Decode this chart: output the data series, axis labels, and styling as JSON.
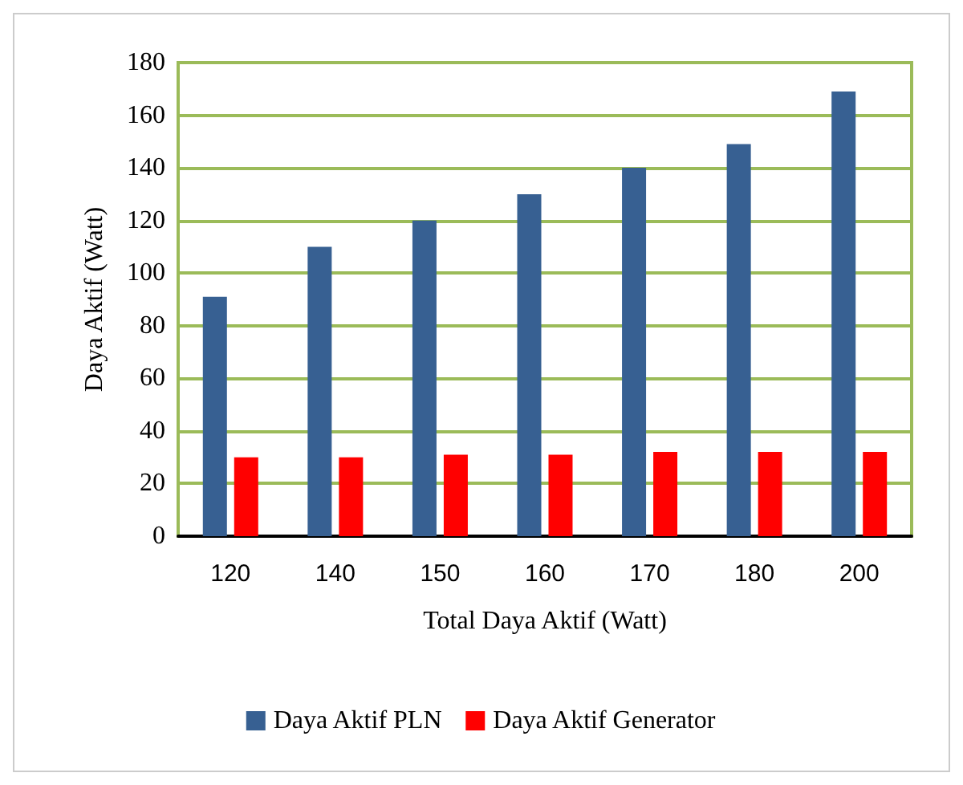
{
  "chart_data": {
    "type": "bar",
    "xlabel": "Total Daya Aktif (Watt)",
    "ylabel": "Daya Aktif (Watt)",
    "categories": [
      "120",
      "140",
      "150",
      "160",
      "170",
      "180",
      "200"
    ],
    "series": [
      {
        "name": "Daya Aktif PLN",
        "color": "#376092",
        "values": [
          91,
          110,
          120,
          130,
          140,
          149,
          169
        ]
      },
      {
        "name": "Daya Aktif Generator",
        "color": "#ff0000",
        "values": [
          30,
          30,
          31,
          31,
          32,
          32,
          32
        ]
      }
    ],
    "ylim": [
      0,
      180
    ],
    "yticks": [
      0,
      20,
      40,
      60,
      80,
      100,
      120,
      140,
      160,
      180
    ],
    "grid": "y",
    "legend": "bottom"
  }
}
